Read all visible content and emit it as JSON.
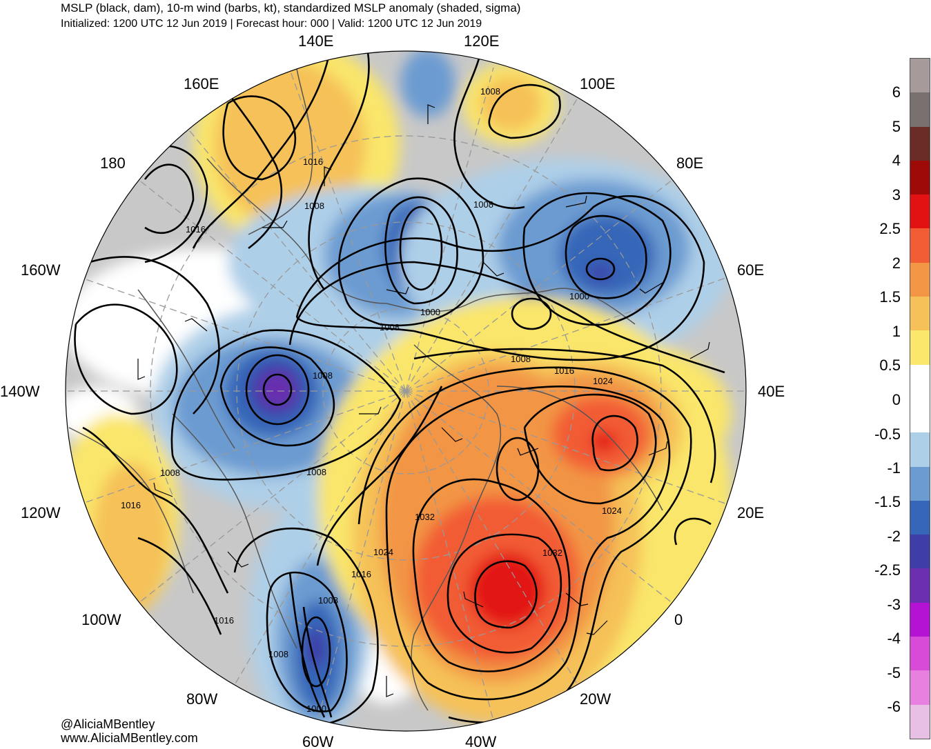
{
  "header": {
    "title": "MSLP (black, dam), 10-m wind (barbs, kt), standardized MSLP anomaly (shaded, sigma)",
    "subtitle": "Initialized: 1200 UTC 12 Jun 2019 | Forecast hour: 000 | Valid: 1200 UTC 12 Jun 2019"
  },
  "credits": {
    "twitter": "@AliciaMBentley",
    "website": "www.AliciaMBentley.com"
  },
  "longitude_labels": [
    "140E",
    "120E",
    "160E",
    "100E",
    "180",
    "80E",
    "160W",
    "60E",
    "140W",
    "40E",
    "120W",
    "20E",
    "100W",
    "0",
    "80W",
    "20W",
    "60W",
    "40W"
  ],
  "contour_labels": [
    "1008",
    "1016",
    "1008",
    "1016",
    "1008",
    "1000",
    "1008",
    "1000",
    "1008",
    "1016",
    "1024",
    "1008",
    "1008",
    "1008",
    "1016",
    "1032",
    "1024",
    "1032",
    "1024",
    "1016",
    "1008",
    "1016",
    "1008",
    "1000"
  ],
  "colorbar": {
    "labels": [
      "6",
      "5",
      "4",
      "3",
      "2.5",
      "2",
      "1.5",
      "1",
      "0.5",
      "0",
      "-0.5",
      "-1",
      "-1.5",
      "-2",
      "-2.5",
      "-3",
      "-4",
      "-5",
      "-6"
    ],
    "colors": [
      "#a69a9a",
      "#77706e",
      "#6b2b27",
      "#9e0a08",
      "#e31212",
      "#f25c35",
      "#f29545",
      "#f5c158",
      "#fae66b",
      "#ffffff",
      "#ffffff",
      "#aecfe8",
      "#6c9bd1",
      "#3566b8",
      "#3f3da8",
      "#6b2fb0",
      "#b513d3",
      "#d84ad8",
      "#e880e0",
      "#e8c0e6"
    ]
  },
  "anomaly_regions": [
    {
      "name": "northeast-pacific-negative",
      "sigma": -3
    },
    {
      "name": "siberia-positive",
      "sigma": 1
    },
    {
      "name": "central-arctic-negative",
      "sigma": -2.5
    },
    {
      "name": "west-siberia-negative",
      "sigma": -2
    },
    {
      "name": "greenland-positive",
      "sigma": 3
    },
    {
      "name": "scandinavia-positive",
      "sigma": 2.5
    },
    {
      "name": "labrador-negative",
      "sigma": -2.5
    }
  ]
}
